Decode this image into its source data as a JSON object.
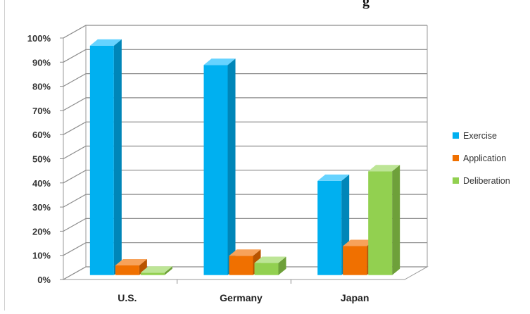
{
  "chart_data": {
    "type": "bar",
    "title_fragment": "g",
    "categories": [
      "U.S.",
      "Germany",
      "Japan"
    ],
    "series": [
      {
        "name": "Exercise",
        "values": [
          95,
          87,
          39
        ],
        "color": "#00b0f0",
        "side": "#0086b8",
        "top": "#66d3ff"
      },
      {
        "name": "Application",
        "values": [
          4,
          8,
          12
        ],
        "color": "#f07000",
        "side": "#b85400",
        "top": "#f7a25a"
      },
      {
        "name": "Deliberation",
        "values": [
          1,
          5,
          43
        ],
        "color": "#92d050",
        "side": "#6ea03a",
        "top": "#bde596"
      }
    ],
    "y_ticks": [
      "0%",
      "10%",
      "20%",
      "30%",
      "40%",
      "50%",
      "60%",
      "70%",
      "80%",
      "90%",
      "100%"
    ],
    "ylim": [
      0,
      100
    ],
    "grid": true,
    "legend_position": "right"
  }
}
